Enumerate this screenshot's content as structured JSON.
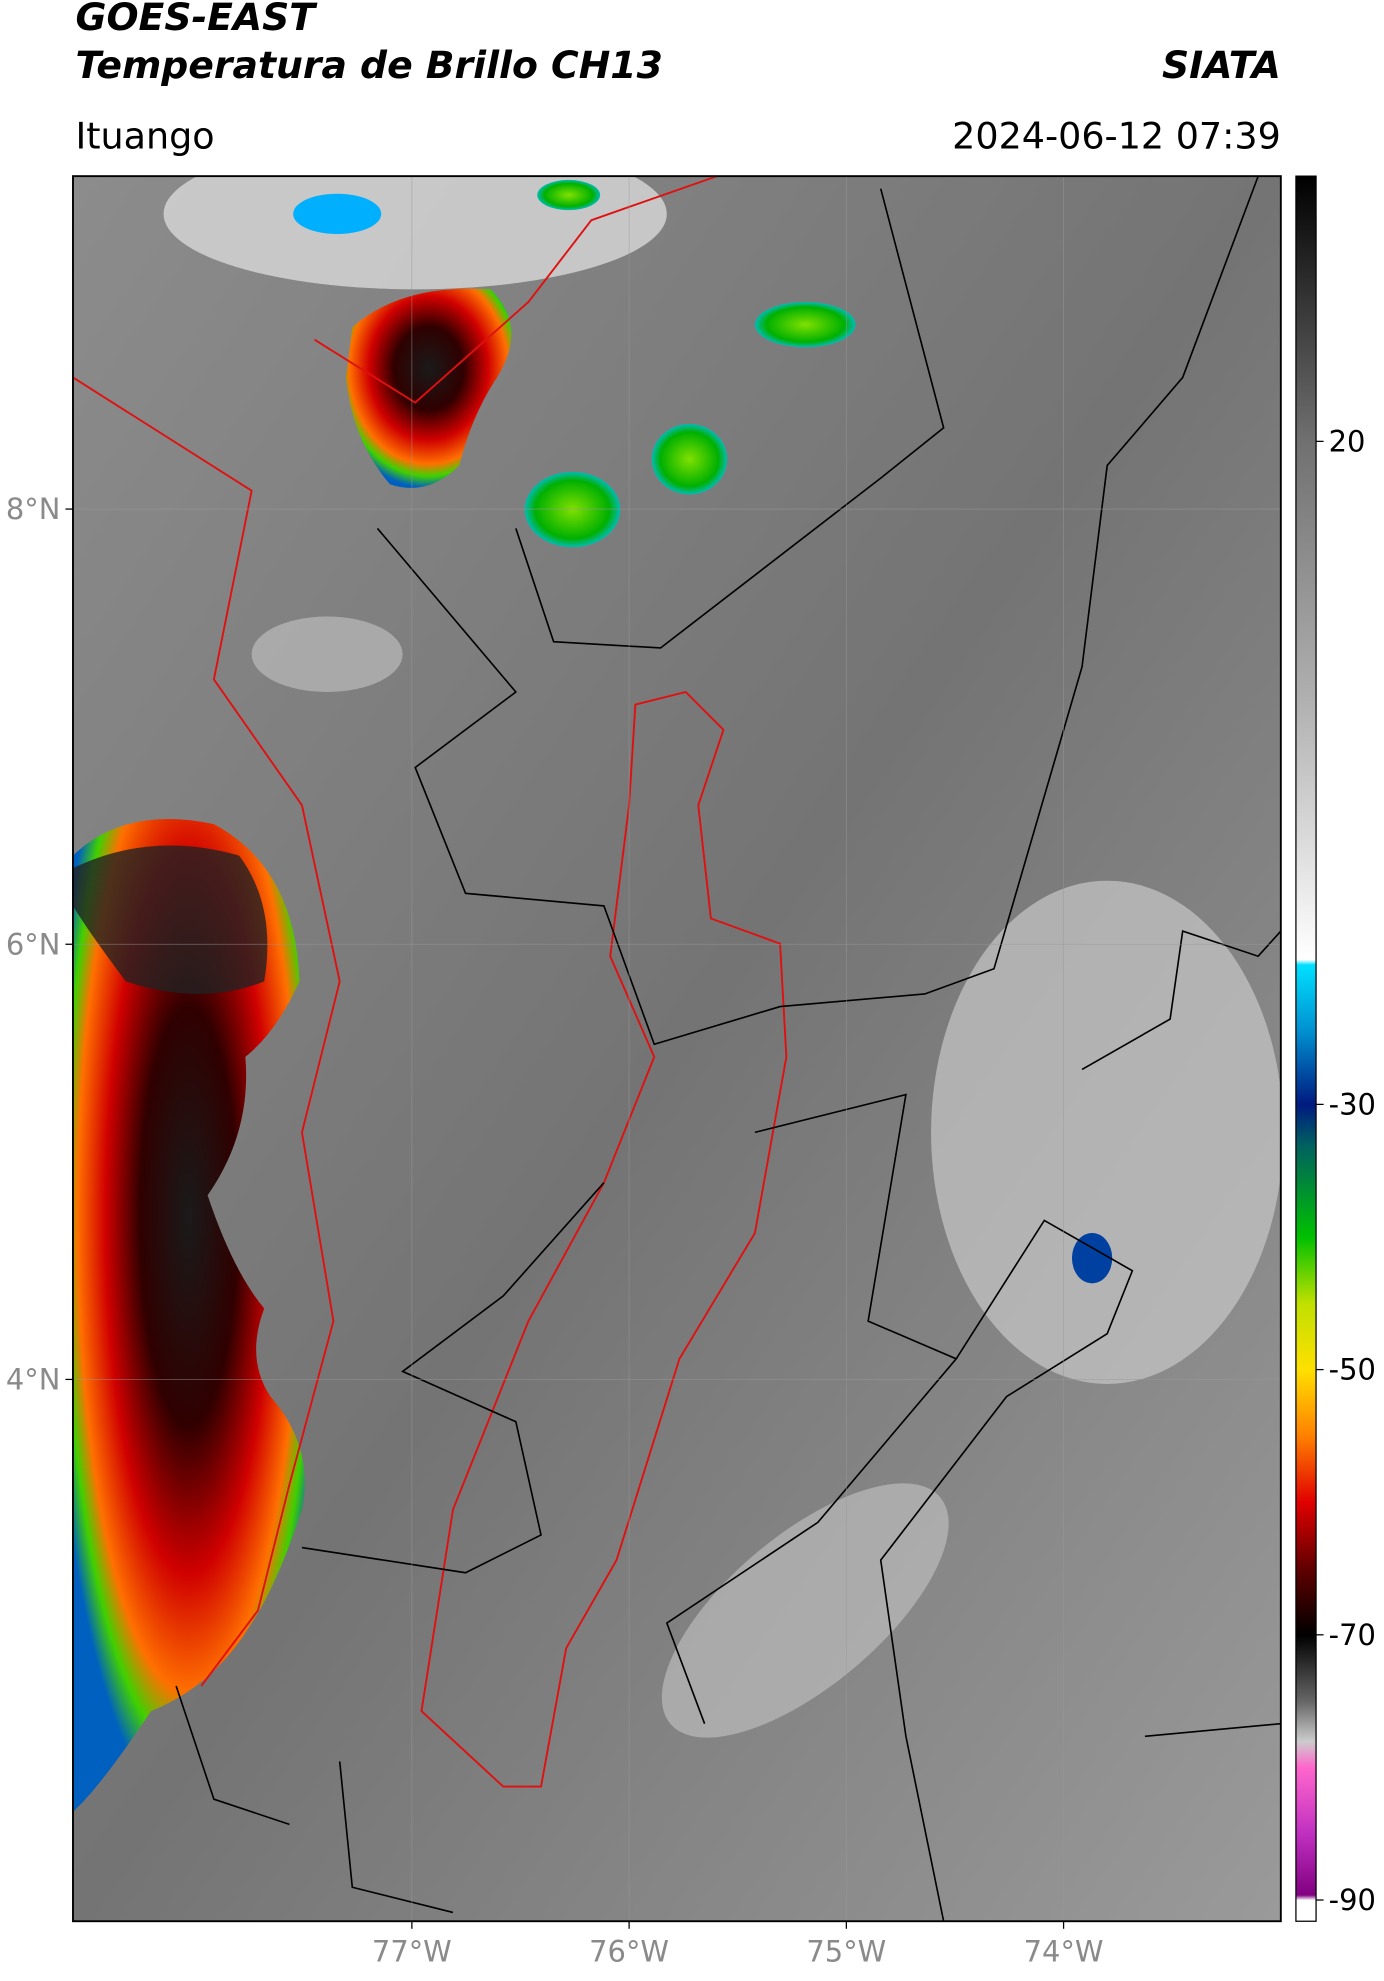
{
  "header": {
    "title": "GOES-EAST",
    "subtitle": "Temperatura de Brillo CH13",
    "source": "SIATA",
    "location": "Ituango",
    "datetime": "2024-06-12 07:39"
  },
  "map": {
    "xlim": [
      -78.56,
      -73.0
    ],
    "ylim": [
      1.51,
      9.53
    ],
    "xticks": [
      {
        "value": -77,
        "label": "77°W"
      },
      {
        "value": -76,
        "label": "76°W"
      },
      {
        "value": -75,
        "label": "75°W"
      },
      {
        "value": -74,
        "label": "74°W"
      }
    ],
    "yticks": [
      {
        "value": 8,
        "label": "8°N"
      },
      {
        "value": 6,
        "label": "6°N"
      },
      {
        "value": 4,
        "label": "4°N"
      }
    ],
    "grid": true
  },
  "colorbar": {
    "clim": [
      -91.6,
      40
    ],
    "ticks": [
      20,
      -30,
      -50,
      -70,
      -90
    ]
  }
}
